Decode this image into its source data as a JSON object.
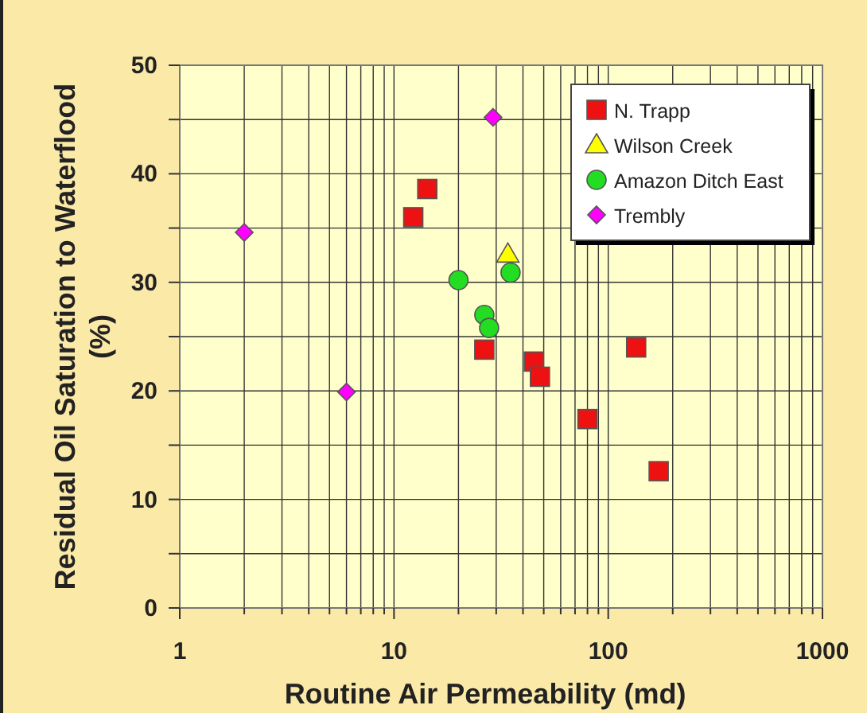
{
  "chart_data": {
    "type": "scatter",
    "xlabel": "Routine Air Permeability (md)",
    "ylabel": "Residual Oil Saturation to Waterflood (%)",
    "log": "x",
    "grid": true,
    "legend": "top right",
    "xlim": [
      1,
      1000
    ],
    "ylim": [
      0,
      50
    ],
    "xticks": [
      1,
      {
        "value": 2,
        "label": null
      },
      {
        "value": 3,
        "label": null
      },
      {
        "value": 4,
        "label": null
      },
      {
        "value": 5,
        "label": null
      },
      {
        "value": 6,
        "label": null
      },
      {
        "value": 7,
        "label": null
      },
      {
        "value": 8,
        "label": null
      },
      {
        "value": 9,
        "label": null
      },
      10,
      {
        "value": 20,
        "label": null
      },
      {
        "value": 30,
        "label": null
      },
      {
        "value": 40,
        "label": null
      },
      {
        "value": 50,
        "label": null
      },
      {
        "value": 60,
        "label": null
      },
      {
        "value": 70,
        "label": null
      },
      {
        "value": 80,
        "label": null
      },
      {
        "value": 90,
        "label": null
      },
      100,
      {
        "value": 200,
        "label": null
      },
      {
        "value": 300,
        "label": null
      },
      {
        "value": 400,
        "label": null
      },
      {
        "value": 500,
        "label": null
      },
      {
        "value": 600,
        "label": null
      },
      {
        "value": 700,
        "label": null
      },
      {
        "value": 800,
        "label": null
      },
      {
        "value": 900,
        "label": null
      },
      1000
    ],
    "yticks": [
      0,
      {
        "value": 5,
        "label": null
      },
      10,
      {
        "value": 15,
        "label": null
      },
      20,
      {
        "value": 25,
        "label": null
      },
      30,
      {
        "value": 35,
        "label": null
      },
      40,
      {
        "value": 45,
        "label": null
      },
      50
    ],
    "series": [
      {
        "name": "N. Trapp",
        "color": "#ee1111",
        "marker": "square",
        "x": [
          12.3,
          14.3,
          26.4,
          45,
          48,
          80,
          135,
          172
        ],
        "values": [
          36,
          38.6,
          23.8,
          22.7,
          21.3,
          17.4,
          24,
          12.6
        ]
      },
      {
        "name": "Wilson Creek",
        "color": "#ffff00",
        "marker": "triangle",
        "x": [
          34
        ],
        "values": [
          32.6
        ]
      },
      {
        "name": "Amazon Ditch East",
        "color": "#22dd22",
        "marker": "circle",
        "x": [
          20,
          35,
          26.4,
          27.8
        ],
        "values": [
          30.2,
          30.9,
          27,
          25.8
        ]
      },
      {
        "name": "Trembly",
        "color": "#ff00ff",
        "marker": "diamond",
        "x": [
          2,
          6,
          29
        ],
        "values": [
          34.6,
          19.9,
          45.2
        ]
      }
    ]
  }
}
